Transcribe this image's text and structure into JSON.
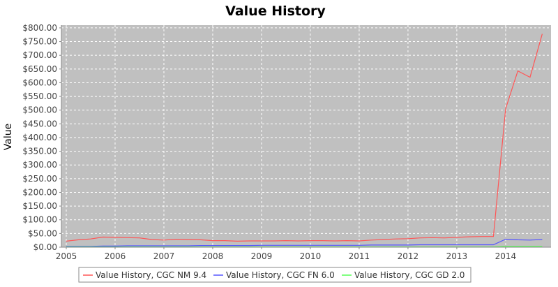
{
  "chart_data": {
    "type": "line",
    "title": "Value History",
    "xlabel": "",
    "ylabel": "Value",
    "xlim": [
      2004.9,
      2014.93
    ],
    "ylim": [
      0,
      810
    ],
    "x_ticks": [
      "2005",
      "2006",
      "2007",
      "2008",
      "2009",
      "2010",
      "2011",
      "2012",
      "2013",
      "2014"
    ],
    "y_ticks": [
      "$0.00",
      "$50.00",
      "$100.00",
      "$150.00",
      "$200.00",
      "$250.00",
      "$300.00",
      "$350.00",
      "$400.00",
      "$450.00",
      "$500.00",
      "$550.00",
      "$600.00",
      "$650.00",
      "$700.00",
      "$750.00",
      "$800.00"
    ],
    "grid": true,
    "legend_position": "bottom",
    "background_color": "#c0c0c0",
    "series": [
      {
        "name": "Value History, CGC NM 9.4",
        "color": "#ff5555",
        "x": [
          2005.0,
          2005.25,
          2005.5,
          2005.75,
          2006.0,
          2006.25,
          2006.5,
          2006.75,
          2007.0,
          2007.25,
          2007.5,
          2007.75,
          2008.0,
          2008.25,
          2008.5,
          2008.75,
          2009.0,
          2009.25,
          2009.5,
          2009.75,
          2010.0,
          2010.25,
          2010.5,
          2010.75,
          2011.0,
          2011.25,
          2011.5,
          2011.75,
          2012.0,
          2012.25,
          2012.5,
          2012.75,
          2013.0,
          2013.25,
          2013.5,
          2013.75,
          2014.0,
          2014.25,
          2014.5,
          2014.75
        ],
        "y": [
          22,
          27,
          30,
          37,
          36,
          35,
          34,
          28,
          26,
          29,
          28,
          27,
          24,
          24,
          22,
          23,
          23,
          23,
          24,
          23,
          24,
          24,
          23,
          24,
          23,
          26,
          28,
          30,
          31,
          34,
          35,
          34,
          36,
          38,
          39,
          39,
          505,
          643,
          620,
          778
        ]
      },
      {
        "name": "Value History, CGC FN 6.0",
        "color": "#5555ff",
        "x": [
          2005.0,
          2005.25,
          2005.5,
          2005.75,
          2006.0,
          2006.25,
          2006.5,
          2006.75,
          2007.0,
          2007.25,
          2007.5,
          2007.75,
          2008.0,
          2008.25,
          2008.5,
          2008.75,
          2009.0,
          2009.25,
          2009.5,
          2009.75,
          2010.0,
          2010.25,
          2010.5,
          2010.75,
          2011.0,
          2011.25,
          2011.5,
          2011.75,
          2012.0,
          2012.25,
          2012.5,
          2012.75,
          2013.0,
          2013.25,
          2013.5,
          2013.75,
          2014.0,
          2014.25,
          2014.5,
          2014.75
        ],
        "y": [
          3,
          3,
          3,
          4,
          4,
          5,
          5,
          5,
          5,
          5,
          5,
          6,
          6,
          6,
          6,
          6,
          7,
          7,
          7,
          7,
          7,
          7,
          7,
          7,
          7,
          8,
          8,
          8,
          8,
          9,
          9,
          9,
          9,
          9,
          9,
          9,
          29,
          27,
          26,
          28
        ]
      },
      {
        "name": "Value History, CGC GD 2.0",
        "color": "#55ff55",
        "x": [
          2005.0,
          2005.25,
          2005.5,
          2005.75,
          2006.0,
          2006.25,
          2006.5,
          2006.75,
          2007.0,
          2007.25,
          2007.5,
          2007.75,
          2008.0,
          2008.25,
          2008.5,
          2008.75,
          2009.0,
          2009.25,
          2009.5,
          2009.75,
          2010.0,
          2010.25,
          2010.5,
          2010.75,
          2011.0,
          2011.25,
          2011.5,
          2011.75,
          2012.0,
          2012.25,
          2012.5,
          2012.75,
          2013.0,
          2013.25,
          2013.5,
          2013.75,
          2014.0,
          2014.25,
          2014.5,
          2014.75
        ],
        "y": [
          1,
          1,
          1,
          1,
          1,
          1,
          1,
          1,
          1,
          1,
          1,
          1,
          1,
          1,
          1,
          1,
          1,
          1,
          1,
          1,
          1,
          1,
          1,
          1,
          1,
          1,
          1,
          1,
          1,
          1,
          1,
          1,
          1,
          1,
          1,
          1,
          3,
          3,
          3,
          3
        ]
      }
    ]
  }
}
